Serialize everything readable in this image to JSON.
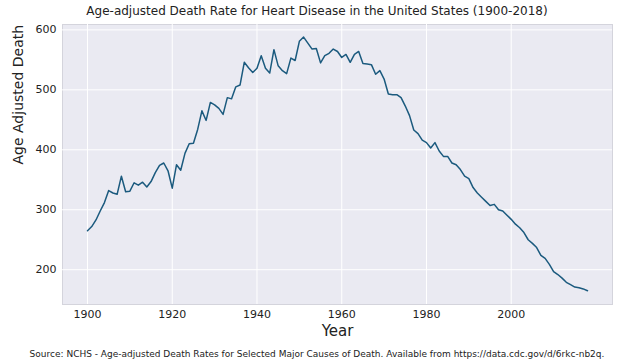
{
  "chart_data": {
    "type": "line",
    "title": "Age-adjusted Death Rate for Heart Disease in the United States (1900-2018)",
    "x_label": "Year",
    "y_label": "Age Adjusted Death Rate",
    "caption": "Source: NCHS - Age-adjusted Death Rates for Selected Major Causes of Death. Available from https://data.cdc.gov/d/6rkc-nb2q.",
    "color": "#1b5a7e",
    "grid": true,
    "xlim": [
      1894.1,
      2023.9
    ],
    "ylim": [
      142,
      609
    ],
    "xticks": [
      1900,
      1920,
      1940,
      1960,
      1980,
      2000
    ],
    "yticks": [
      200,
      300,
      400,
      500,
      600
    ],
    "x": [
      1900,
      1901,
      1902,
      1903,
      1904,
      1905,
      1906,
      1907,
      1908,
      1909,
      1910,
      1911,
      1912,
      1913,
      1914,
      1915,
      1916,
      1917,
      1918,
      1919,
      1920,
      1921,
      1922,
      1923,
      1924,
      1925,
      1926,
      1927,
      1928,
      1929,
      1930,
      1931,
      1932,
      1933,
      1934,
      1935,
      1936,
      1937,
      1938,
      1939,
      1940,
      1941,
      1942,
      1943,
      1944,
      1945,
      1946,
      1947,
      1948,
      1949,
      1950,
      1951,
      1952,
      1953,
      1954,
      1955,
      1956,
      1957,
      1958,
      1959,
      1960,
      1961,
      1962,
      1963,
      1964,
      1965,
      1966,
      1967,
      1968,
      1969,
      1970,
      1971,
      1972,
      1973,
      1974,
      1975,
      1976,
      1977,
      1978,
      1979,
      1980,
      1981,
      1982,
      1983,
      1984,
      1985,
      1986,
      1987,
      1988,
      1989,
      1990,
      1991,
      1992,
      1993,
      1994,
      1995,
      1996,
      1997,
      1998,
      1999,
      2000,
      2001,
      2002,
      2003,
      2004,
      2005,
      2006,
      2007,
      2008,
      2009,
      2010,
      2011,
      2012,
      2013,
      2014,
      2015,
      2016,
      2017,
      2018
    ],
    "values": [
      265,
      272,
      283,
      298,
      312,
      332,
      328,
      326,
      356,
      330,
      331,
      345,
      341,
      346,
      338,
      347,
      362,
      374,
      378,
      365,
      336,
      375,
      366,
      394,
      410,
      411,
      434,
      465,
      449,
      479,
      475,
      469,
      459,
      487,
      485,
      505,
      508,
      546,
      537,
      529,
      536,
      557,
      536,
      528,
      567,
      540,
      532,
      527,
      553,
      549,
      581,
      588,
      578,
      568,
      569,
      545,
      557,
      561,
      568,
      564,
      554,
      559,
      546,
      559,
      564,
      544,
      543,
      542,
      526,
      532,
      518,
      493,
      492,
      492,
      487,
      473,
      457,
      433,
      427,
      416,
      412,
      403,
      412,
      398,
      389,
      389,
      378,
      375,
      367,
      356,
      352,
      337,
      328,
      321,
      314,
      307,
      309,
      300,
      298,
      291,
      284,
      276,
      270,
      262,
      250,
      244,
      237,
      224,
      219,
      209,
      197,
      192,
      186,
      179,
      175,
      171,
      170,
      168,
      165
    ]
  }
}
